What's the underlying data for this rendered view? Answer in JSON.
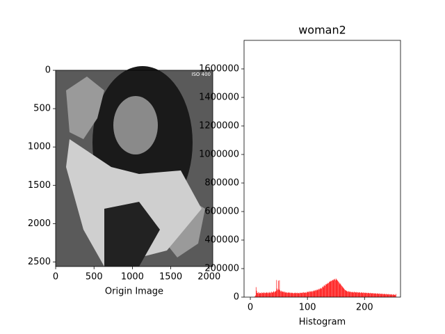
{
  "chart_data": [
    {
      "type": "image",
      "xlabel": "Origin Image",
      "annotation": "ISO 400",
      "xlim": [
        -0.5,
        2047.5
      ],
      "ylim": [
        2559.5,
        -0.5
      ],
      "xticks": [
        0,
        500,
        1000,
        1500,
        2000
      ],
      "yticks": [
        0,
        500,
        1000,
        1500,
        2000,
        2500
      ]
    },
    {
      "type": "bar",
      "title": "woman2",
      "xlabel": "Histogram",
      "color": "red",
      "xlim": [
        -11,
        263
      ],
      "ylim": [
        0,
        1800000
      ],
      "xticks": [
        0,
        100,
        200
      ],
      "yticks": [
        0,
        200000,
        400000,
        600000,
        800000,
        1000000,
        1200000,
        1400000,
        1600000
      ],
      "x": [
        0,
        1,
        2,
        3,
        4,
        5,
        6,
        7,
        8,
        9,
        10,
        11,
        12,
        13,
        14,
        15,
        16,
        17,
        18,
        19,
        20,
        21,
        22,
        23,
        24,
        25,
        26,
        27,
        28,
        29,
        30,
        31,
        32,
        33,
        34,
        35,
        36,
        37,
        38,
        39,
        40,
        41,
        42,
        43,
        44,
        45,
        46,
        47,
        48,
        49,
        50,
        51,
        52,
        53,
        54,
        55,
        56,
        57,
        58,
        59,
        60,
        61,
        62,
        63,
        64,
        65,
        66,
        67,
        68,
        69,
        70,
        71,
        72,
        73,
        74,
        75,
        76,
        77,
        78,
        79,
        80,
        81,
        82,
        83,
        84,
        85,
        86,
        87,
        88,
        89,
        90,
        91,
        92,
        93,
        94,
        95,
        96,
        97,
        98,
        99,
        100,
        101,
        102,
        103,
        104,
        105,
        106,
        107,
        108,
        109,
        110,
        111,
        112,
        113,
        114,
        115,
        116,
        117,
        118,
        119,
        120,
        121,
        122,
        123,
        124,
        125,
        126,
        127,
        128,
        129,
        130,
        131,
        132,
        133,
        134,
        135,
        136,
        137,
        138,
        139,
        140,
        141,
        142,
        143,
        144,
        145,
        146,
        147,
        148,
        149,
        150,
        151,
        152,
        153,
        154,
        155,
        156,
        157,
        158,
        159,
        160,
        161,
        162,
        163,
        164,
        165,
        166,
        167,
        168,
        169,
        170,
        171,
        172,
        173,
        174,
        175,
        176,
        177,
        178,
        179,
        180,
        181,
        182,
        183,
        184,
        185,
        186,
        187,
        188,
        189,
        190,
        191,
        192,
        193,
        194,
        195,
        196,
        197,
        198,
        199,
        200,
        201,
        202,
        203,
        204,
        205,
        206,
        207,
        208,
        209,
        210,
        211,
        212,
        213,
        214,
        215,
        216,
        217,
        218,
        219,
        220,
        221,
        222,
        223,
        224,
        225,
        226,
        227,
        228,
        229,
        230,
        231,
        232,
        233,
        234,
        235,
        236,
        237,
        238,
        239,
        240,
        241,
        242,
        243,
        244,
        245,
        246,
        247,
        248,
        249,
        250,
        251,
        252,
        253,
        254,
        255
      ],
      "values": [
        0,
        0,
        0,
        0,
        0,
        0,
        0,
        2000,
        5000,
        12000,
        70000,
        45000,
        30000,
        28000,
        35000,
        25000,
        32000,
        28000,
        30000,
        26000,
        33000,
        29000,
        31000,
        27000,
        34000,
        30000,
        28000,
        32000,
        29000,
        35000,
        31000,
        27000,
        33000,
        30000,
        36000,
        28000,
        32000,
        38000,
        30000,
        34000,
        36000,
        42000,
        33000,
        40000,
        38000,
        45000,
        120000,
        60000,
        50000,
        115000,
        55000,
        118000,
        48000,
        40000,
        45000,
        36000,
        42000,
        38000,
        35000,
        40000,
        33000,
        37000,
        30000,
        34000,
        32000,
        29000,
        35000,
        31000,
        30000,
        33000,
        28000,
        32000,
        30000,
        27000,
        31000,
        29000,
        26000,
        30000,
        28000,
        32000,
        27000,
        29000,
        31000,
        26000,
        30000,
        28000,
        27000,
        32000,
        29000,
        30000,
        28000,
        33000,
        30000,
        35000,
        31000,
        29000,
        34000,
        32000,
        30000,
        36000,
        38000,
        33000,
        40000,
        35000,
        42000,
        37000,
        39000,
        44000,
        36000,
        41000,
        45000,
        40000,
        48000,
        43000,
        50000,
        46000,
        52000,
        48000,
        55000,
        50000,
        58000,
        54000,
        62000,
        57000,
        65000,
        60000,
        70000,
        75000,
        68000,
        80000,
        85000,
        78000,
        90000,
        88000,
        95000,
        92000,
        100000,
        98000,
        105000,
        110000,
        108000,
        115000,
        112000,
        118000,
        120000,
        116000,
        125000,
        122000,
        128000,
        118000,
        130000,
        124000,
        120000,
        115000,
        110000,
        105000,
        98000,
        90000,
        95000,
        85000,
        80000,
        75000,
        70000,
        65000,
        60000,
        55000,
        50000,
        48000,
        45000,
        42000,
        40000,
        38000,
        42000,
        36000,
        40000,
        35000,
        38000,
        34000,
        37000,
        33000,
        36000,
        32000,
        38000,
        34000,
        35000,
        31000,
        36000,
        33000,
        34000,
        30000,
        35000,
        32000,
        33000,
        29000,
        34000,
        31000,
        32000,
        28000,
        33000,
        30000,
        31000,
        28000,
        32000,
        29000,
        30000,
        27000,
        31000,
        28000,
        29000,
        26000,
        30000,
        27000,
        28000,
        25000,
        29000,
        26000,
        27000,
        24000,
        28000,
        25000,
        26000,
        23000,
        27000,
        24000,
        25000,
        22000,
        26000,
        23000,
        24000,
        21000,
        25000,
        22000,
        23000,
        20000,
        24000,
        21000,
        22000,
        19000,
        23000,
        20000,
        21000,
        18000,
        22000,
        19000,
        20000,
        17000,
        21000,
        18000,
        19000,
        16000,
        20000,
        17000,
        18000,
        15000,
        16000,
        22000
      ]
    }
  ]
}
